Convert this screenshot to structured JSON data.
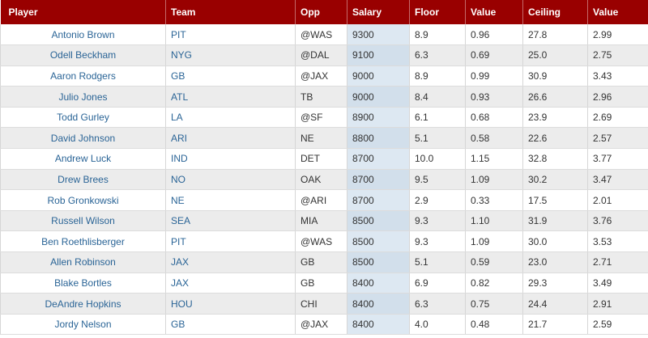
{
  "table": {
    "headers": [
      "Player",
      "Team",
      "Opp",
      "Salary",
      "Floor",
      "Value",
      "Ceiling",
      "Value"
    ],
    "rows": [
      {
        "player": "Antonio Brown",
        "team": "PIT",
        "opp": "@WAS",
        "salary": "9300",
        "floor": "8.9",
        "value": "0.96",
        "ceiling": "27.8",
        "value2": "2.99"
      },
      {
        "player": "Odell Beckham",
        "team": "NYG",
        "opp": "@DAL",
        "salary": "9100",
        "floor": "6.3",
        "value": "0.69",
        "ceiling": "25.0",
        "value2": "2.75"
      },
      {
        "player": "Aaron Rodgers",
        "team": "GB",
        "opp": "@JAX",
        "salary": "9000",
        "floor": "8.9",
        "value": "0.99",
        "ceiling": "30.9",
        "value2": "3.43"
      },
      {
        "player": "Julio Jones",
        "team": "ATL",
        "opp": "TB",
        "salary": "9000",
        "floor": "8.4",
        "value": "0.93",
        "ceiling": "26.6",
        "value2": "2.96"
      },
      {
        "player": "Todd Gurley",
        "team": "LA",
        "opp": "@SF",
        "salary": "8900",
        "floor": "6.1",
        "value": "0.68",
        "ceiling": "23.9",
        "value2": "2.69"
      },
      {
        "player": "David Johnson",
        "team": "ARI",
        "opp": "NE",
        "salary": "8800",
        "floor": "5.1",
        "value": "0.58",
        "ceiling": "22.6",
        "value2": "2.57"
      },
      {
        "player": "Andrew Luck",
        "team": "IND",
        "opp": "DET",
        "salary": "8700",
        "floor": "10.0",
        "value": "1.15",
        "ceiling": "32.8",
        "value2": "3.77"
      },
      {
        "player": "Drew Brees",
        "team": "NO",
        "opp": "OAK",
        "salary": "8700",
        "floor": "9.5",
        "value": "1.09",
        "ceiling": "30.2",
        "value2": "3.47"
      },
      {
        "player": "Rob Gronkowski",
        "team": "NE",
        "opp": "@ARI",
        "salary": "8700",
        "floor": "2.9",
        "value": "0.33",
        "ceiling": "17.5",
        "value2": "2.01"
      },
      {
        "player": "Russell Wilson",
        "team": "SEA",
        "opp": "MIA",
        "salary": "8500",
        "floor": "9.3",
        "value": "1.10",
        "ceiling": "31.9",
        "value2": "3.76"
      },
      {
        "player": "Ben Roethlisberger",
        "team": "PIT",
        "opp": "@WAS",
        "salary": "8500",
        "floor": "9.3",
        "value": "1.09",
        "ceiling": "30.0",
        "value2": "3.53"
      },
      {
        "player": "Allen Robinson",
        "team": "JAX",
        "opp": "GB",
        "salary": "8500",
        "floor": "5.1",
        "value": "0.59",
        "ceiling": "23.0",
        "value2": "2.71"
      },
      {
        "player": "Blake Bortles",
        "team": "JAX",
        "opp": "GB",
        "salary": "8400",
        "floor": "6.9",
        "value": "0.82",
        "ceiling": "29.3",
        "value2": "3.49"
      },
      {
        "player": "DeAndre Hopkins",
        "team": "HOU",
        "opp": "CHI",
        "salary": "8400",
        "floor": "6.3",
        "value": "0.75",
        "ceiling": "24.4",
        "value2": "2.91"
      },
      {
        "player": "Jordy Nelson",
        "team": "GB",
        "opp": "@JAX",
        "salary": "8400",
        "floor": "4.0",
        "value": "0.48",
        "ceiling": "21.7",
        "value2": "2.59"
      }
    ]
  },
  "colors": {
    "header_bg": "#990000",
    "link": "#2a6496",
    "salary_highlight": "#dde8f2"
  }
}
